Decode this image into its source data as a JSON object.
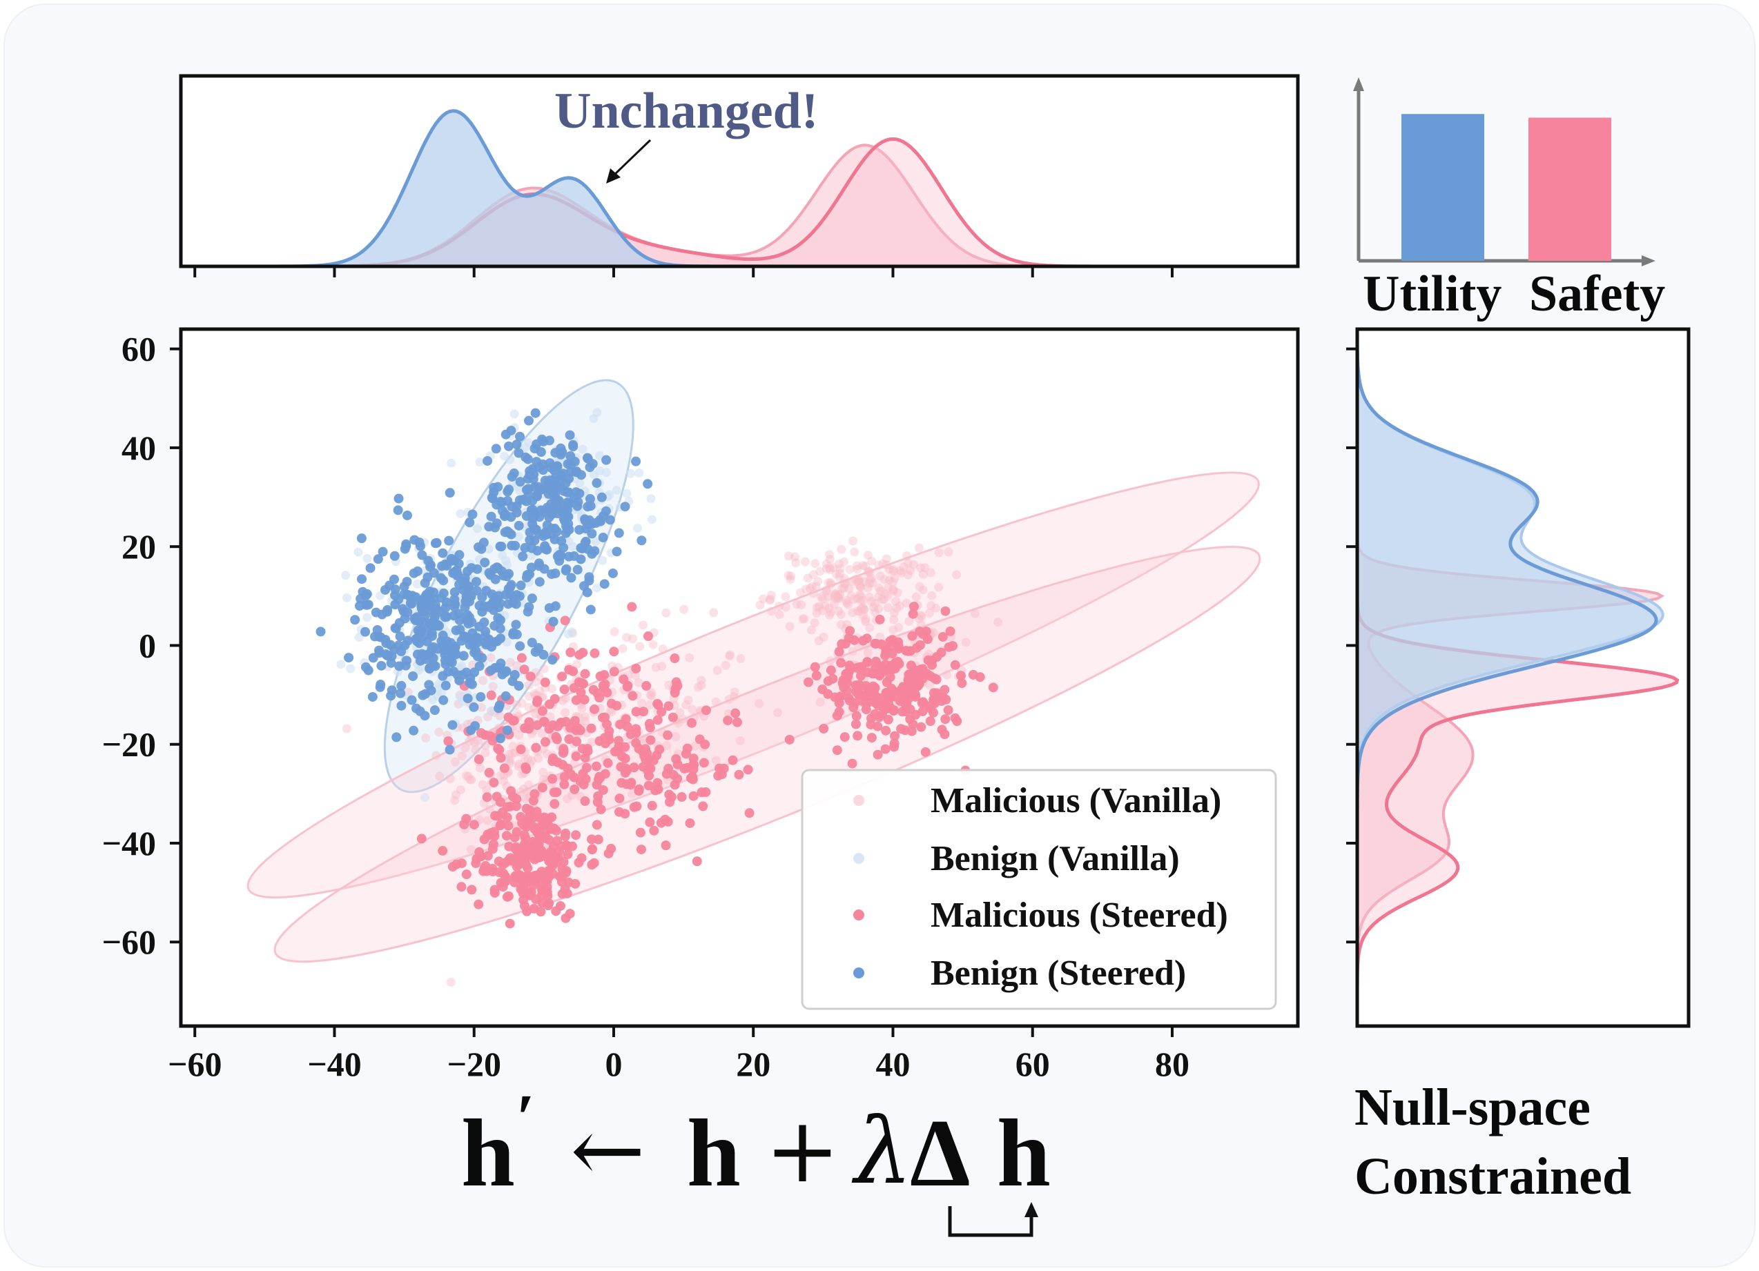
{
  "colors": {
    "background": "#f7f9fd",
    "benign_vanilla": "#cfe1f3",
    "benign_steered": "#6a9bd6",
    "malicious_vanilla": "#f8bcc8",
    "malicious_steered": "#f5849c",
    "annotation": "#4f5b86",
    "axis": "#111111",
    "bar_axis": "#7a7a7a"
  },
  "annotation": {
    "text": "Unchanged!"
  },
  "formula": {
    "h_prime": "h",
    "prime": "′",
    "arrow": "←",
    "h": "h",
    "plus": "+",
    "lambda": "λ",
    "delta": "Δ",
    "h_end": "h"
  },
  "side_caption": {
    "line1": "Null-space",
    "line2": "Constrained"
  },
  "chart_data": [
    {
      "type": "scatter",
      "name": "main-scatter",
      "xlim": [
        -62,
        98
      ],
      "ylim": [
        -77,
        64
      ],
      "xticks": [
        "−60",
        "−40",
        "−20",
        "0",
        "20",
        "40",
        "60",
        "80"
      ],
      "xtick_values": [
        -60,
        -40,
        -20,
        0,
        20,
        40,
        60,
        80
      ],
      "yticks": [
        "60",
        "40",
        "20",
        "0",
        "−20",
        "−40",
        "−60"
      ],
      "ytick_values": [
        60,
        40,
        20,
        0,
        -20,
        -40,
        -60
      ],
      "legend_position": "lower-right",
      "legend": [
        "Malicious (Vanilla)",
        "Benign (Vanilla)",
        "Malicious (Steered)",
        "Benign (Steered)"
      ],
      "series": [
        {
          "name": "Malicious (Vanilla)",
          "clusters": [
            {
              "cx": -14,
              "cy": -22,
              "sx": 6,
              "sy": 11,
              "n": 180
            },
            {
              "cx": 2,
              "cy": -12,
              "sx": 9,
              "sy": 8,
              "n": 150
            },
            {
              "cx": 35,
              "cy": 11,
              "sx": 6,
              "sy": 4,
              "n": 200
            },
            {
              "cx": 40,
              "cy": -2,
              "sx": 5,
              "sy": 5,
              "n": 60
            }
          ]
        },
        {
          "name": "Benign (Vanilla)",
          "clusters": [
            {
              "cx": -24,
              "cy": 4,
              "sx": 6,
              "sy": 9,
              "n": 150
            },
            {
              "cx": -8,
              "cy": 30,
              "sx": 6,
              "sy": 7,
              "n": 120
            }
          ]
        },
        {
          "name": "Malicious (Steered)",
          "clusters": [
            {
              "cx": -12,
              "cy": -43,
              "sx": 4,
              "sy": 6,
              "n": 230
            },
            {
              "cx": -5,
              "cy": -18,
              "sx": 7,
              "sy": 10,
              "n": 200
            },
            {
              "cx": 8,
              "cy": -25,
              "sx": 5,
              "sy": 7,
              "n": 90
            },
            {
              "cx": 40,
              "cy": -8,
              "sx": 5,
              "sy": 6,
              "n": 260
            }
          ]
        },
        {
          "name": "Benign (Steered)",
          "clusters": [
            {
              "cx": -24,
              "cy": 5,
              "sx": 6,
              "sy": 9,
              "n": 380
            },
            {
              "cx": -9,
              "cy": 28,
              "sx": 5,
              "sy": 8,
              "n": 260
            }
          ]
        }
      ],
      "ellipses": [
        {
          "name": "benign-ellipse",
          "cx": -15,
          "cy": 12,
          "rx": 33,
          "ry": 14,
          "angle_deg": 62
        },
        {
          "name": "malicious-vanilla-ellipse",
          "cx": 20,
          "cy": -8,
          "rx": 78,
          "ry": 13,
          "angle_deg": 22
        },
        {
          "name": "malicious-steered-ellipse",
          "cx": 22,
          "cy": -22,
          "rx": 76,
          "ry": 13,
          "angle_deg": 22
        }
      ]
    },
    {
      "type": "area",
      "name": "top-density",
      "axis": "x",
      "series": [
        {
          "name": "Benign (Vanilla)",
          "peaks": [
            [
              -23,
              6,
              1.0
            ],
            [
              -6,
              5,
              0.55
            ]
          ]
        },
        {
          "name": "Benign (Steered)",
          "peaks": [
            [
              -23,
              6,
              1.0
            ],
            [
              -6,
              5,
              0.55
            ]
          ]
        },
        {
          "name": "Malicious (Vanilla)",
          "peaks": [
            [
              -12,
              8,
              0.48
            ],
            [
              5,
              10,
              0.1
            ],
            [
              36,
              7,
              0.78
            ]
          ]
        },
        {
          "name": "Malicious (Steered)",
          "peaks": [
            [
              -12,
              8,
              0.44
            ],
            [
              5,
              10,
              0.1
            ],
            [
              40,
              7,
              0.82
            ]
          ]
        }
      ]
    },
    {
      "type": "area",
      "name": "right-density",
      "axis": "y",
      "series": [
        {
          "name": "Benign (Vanilla)",
          "peaks": [
            [
              6,
              9,
              1.0
            ],
            [
              30,
              8,
              0.55
            ]
          ]
        },
        {
          "name": "Benign (Steered)",
          "peaks": [
            [
              5,
              9,
              0.98
            ],
            [
              30,
              8,
              0.57
            ]
          ]
        },
        {
          "name": "Malicious (Vanilla)",
          "peaks": [
            [
              10,
              3,
              1.0
            ],
            [
              -22,
              10,
              0.38
            ],
            [
              -42,
              6,
              0.24
            ]
          ]
        },
        {
          "name": "Malicious (Steered)",
          "peaks": [
            [
              -7,
              4,
              1.0
            ],
            [
              -20,
              8,
              0.2
            ],
            [
              -45,
              6,
              0.33
            ]
          ]
        }
      ]
    },
    {
      "type": "bar",
      "name": "utility-safety-bars",
      "categories": [
        "Utility",
        "Safety"
      ],
      "values": [
        0.8,
        0.78
      ],
      "ylim": [
        0,
        1
      ]
    }
  ]
}
